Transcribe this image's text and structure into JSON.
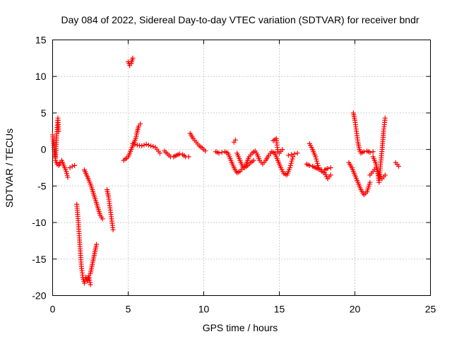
{
  "chart_data": {
    "type": "scatter",
    "title": "Day 084 of 2022, Sidereal Day-to-day VTEC variation (SDTVAR) for receiver bndr",
    "xlabel": "GPS time / hours",
    "ylabel": "SDTVAR / TECUs",
    "xlim": [
      0,
      25
    ],
    "ylim": [
      -20,
      15
    ],
    "xticks": [
      0,
      5,
      10,
      15,
      20,
      25
    ],
    "yticks": [
      -20,
      -15,
      -10,
      -5,
      0,
      5,
      10,
      15
    ],
    "xtick_labels": [
      "0",
      "5",
      "10",
      "15",
      "20",
      "25"
    ],
    "ytick_labels": [
      "-20",
      "-15",
      "-10",
      "-5",
      "0",
      "5",
      "10",
      "15"
    ],
    "grid": true,
    "marker": "+",
    "color": "#ff0000",
    "series": [
      {
        "name": "s1",
        "x": [
          0.0,
          0.1,
          0.2,
          0.3
        ],
        "y": [
          2.0,
          0.0,
          -1.5,
          -2.0
        ]
      },
      {
        "name": "s2",
        "x": [
          0.2,
          0.25,
          0.3,
          0.35,
          0.4
        ],
        "y": [
          -1.0,
          1.0,
          3.0,
          4.3,
          2.5
        ]
      },
      {
        "name": "s3",
        "x": [
          0.3,
          0.4,
          0.5,
          0.6,
          0.7,
          0.8,
          0.9,
          1.0
        ],
        "y": [
          -2.0,
          -2.2,
          -1.8,
          -1.5,
          -2.0,
          -2.5,
          -3.0,
          -3.8
        ]
      },
      {
        "name": "s4",
        "x": [
          1.15,
          1.3,
          1.45
        ],
        "y": [
          -2.5,
          -2.3,
          -2.2
        ]
      },
      {
        "name": "s5",
        "x": [
          1.6,
          1.7,
          1.8,
          1.9,
          2.0,
          2.1,
          2.2,
          2.3,
          2.4,
          2.5
        ],
        "y": [
          -7.5,
          -10.0,
          -13.0,
          -16.0,
          -17.5,
          -18.3,
          -17.5,
          -18.0,
          -17.3,
          -18.5
        ]
      },
      {
        "name": "s6",
        "x": [
          2.1,
          2.25,
          2.4,
          2.55,
          2.7,
          2.85,
          3.0,
          3.15,
          3.3
        ],
        "y": [
          -2.8,
          -3.5,
          -4.2,
          -5.0,
          -6.0,
          -7.0,
          -8.0,
          -9.0,
          -9.5
        ]
      },
      {
        "name": "s7",
        "x": [
          2.5,
          2.6,
          2.7,
          2.8,
          2.9
        ],
        "y": [
          -17.0,
          -16.0,
          -15.0,
          -14.0,
          -13.0
        ]
      },
      {
        "name": "s8",
        "x": [
          3.6,
          3.7,
          3.8,
          3.9,
          4.0
        ],
        "y": [
          -5.5,
          -6.5,
          -8.0,
          -9.5,
          -11.0
        ]
      },
      {
        "name": "s9",
        "x": [
          4.7,
          4.8,
          4.9,
          5.0,
          5.1,
          5.2,
          5.3,
          5.4,
          5.5,
          5.6,
          5.7,
          5.8
        ],
        "y": [
          -1.5,
          -1.3,
          -1.2,
          -1.0,
          -0.5,
          0.0,
          0.5,
          1.0,
          1.5,
          2.5,
          3.2,
          3.5
        ]
      },
      {
        "name": "s10",
        "x": [
          5.0,
          5.1,
          5.2,
          5.3
        ],
        "y": [
          12.0,
          11.5,
          11.8,
          12.5
        ]
      },
      {
        "name": "s11",
        "x": [
          5.3,
          5.6,
          5.9,
          6.2,
          6.5,
          6.8,
          7.1
        ],
        "y": [
          0.8,
          0.6,
          0.5,
          0.7,
          0.5,
          0.3,
          -0.5
        ]
      },
      {
        "name": "s12",
        "x": [
          7.4,
          7.6,
          7.8,
          8.0,
          8.2,
          8.4,
          8.6,
          8.8,
          9.0
        ],
        "y": [
          -0.2,
          -0.6,
          -1.0,
          -1.0,
          -0.8,
          -0.6,
          -0.7,
          -1.0,
          -1.0
        ]
      },
      {
        "name": "s13",
        "x": [
          9.1,
          9.3,
          9.5,
          9.7,
          9.9,
          10.1
        ],
        "y": [
          2.2,
          1.5,
          1.0,
          0.5,
          0.2,
          -0.2
        ]
      },
      {
        "name": "s14",
        "x": [
          10.8,
          11.0,
          11.2,
          11.4,
          11.6,
          11.8,
          12.0,
          12.2,
          12.4,
          12.6
        ],
        "y": [
          -0.3,
          -0.5,
          -0.4,
          -0.3,
          -0.5,
          -1.5,
          -2.5,
          -3.2,
          -3.0,
          -2.5
        ]
      },
      {
        "name": "s15",
        "x": [
          12.2,
          12.4,
          12.6,
          12.8,
          13.0,
          13.2,
          13.4
        ],
        "y": [
          -0.5,
          -1.5,
          -2.5,
          -2.0,
          -1.0,
          -0.5,
          -0.2
        ]
      },
      {
        "name": "s16",
        "x": [
          12.7,
          12.9,
          13.1,
          13.3
        ],
        "y": [
          -2.5,
          -2.2,
          -1.8,
          -1.5
        ]
      },
      {
        "name": "s17",
        "x": [
          12.0,
          12.1
        ],
        "y": [
          1.0,
          1.3
        ]
      },
      {
        "name": "s18",
        "x": [
          13.5,
          13.7,
          13.9,
          14.1,
          14.3,
          14.5,
          14.7,
          14.9,
          15.1,
          15.3,
          15.5,
          15.7,
          15.9
        ],
        "y": [
          -0.5,
          -1.5,
          -2.0,
          -1.5,
          -0.8,
          -0.3,
          -0.5,
          -1.5,
          -2.5,
          -3.3,
          -3.5,
          -2.5,
          -1.0
        ]
      },
      {
        "name": "s19",
        "x": [
          14.6,
          14.8,
          14.9,
          15.0,
          15.2
        ],
        "y": [
          1.2,
          1.5,
          -0.3,
          -0.5,
          0.0
        ]
      },
      {
        "name": "s20",
        "x": [
          15.6,
          15.8,
          16.0,
          16.2
        ],
        "y": [
          -0.8,
          -0.7,
          -0.6,
          -0.5
        ]
      },
      {
        "name": "s21",
        "x": [
          17.0,
          17.2,
          17.4,
          17.6,
          17.8,
          18.0,
          18.2,
          18.4
        ],
        "y": [
          0.8,
          0.0,
          -1.0,
          -2.5,
          -3.0,
          -3.2,
          -4.0,
          -3.5
        ]
      },
      {
        "name": "s22",
        "x": [
          16.8,
          17.0,
          17.2,
          17.4,
          17.6,
          17.8,
          18.0,
          18.2,
          18.4
        ],
        "y": [
          -2.0,
          -2.2,
          -2.3,
          -2.5,
          -2.7,
          -2.8,
          -2.8,
          -2.6,
          -2.5
        ]
      },
      {
        "name": "s23",
        "x": [
          19.6,
          19.8,
          20.0,
          20.2,
          20.4,
          20.6,
          20.8,
          21.0
        ],
        "y": [
          -1.8,
          -2.5,
          -3.5,
          -4.5,
          -5.5,
          -6.2,
          -5.8,
          -4.5
        ]
      },
      {
        "name": "s24",
        "x": [
          19.9,
          20.0,
          20.1,
          20.2,
          20.3,
          20.4,
          20.6,
          20.8,
          21.0,
          21.2
        ],
        "y": [
          5.0,
          4.0,
          2.5,
          1.0,
          0.0,
          -0.5,
          -0.3,
          -0.2,
          -0.4,
          -0.3
        ]
      },
      {
        "name": "s25",
        "x": [
          21.0,
          21.2,
          21.4,
          21.6,
          21.8,
          22.0
        ],
        "y": [
          -3.5,
          -3.0,
          -2.5,
          -3.5,
          -4.0,
          -3.5
        ]
      },
      {
        "name": "s26",
        "x": [
          21.2,
          21.4,
          21.5,
          21.6,
          21.7,
          21.8,
          21.9,
          22.0
        ],
        "y": [
          -1.0,
          -2.0,
          -3.0,
          -4.5,
          -2.0,
          0.0,
          2.5,
          4.3
        ]
      },
      {
        "name": "s27",
        "x": [
          22.7,
          22.9
        ],
        "y": [
          -1.8,
          -2.3
        ]
      }
    ]
  }
}
